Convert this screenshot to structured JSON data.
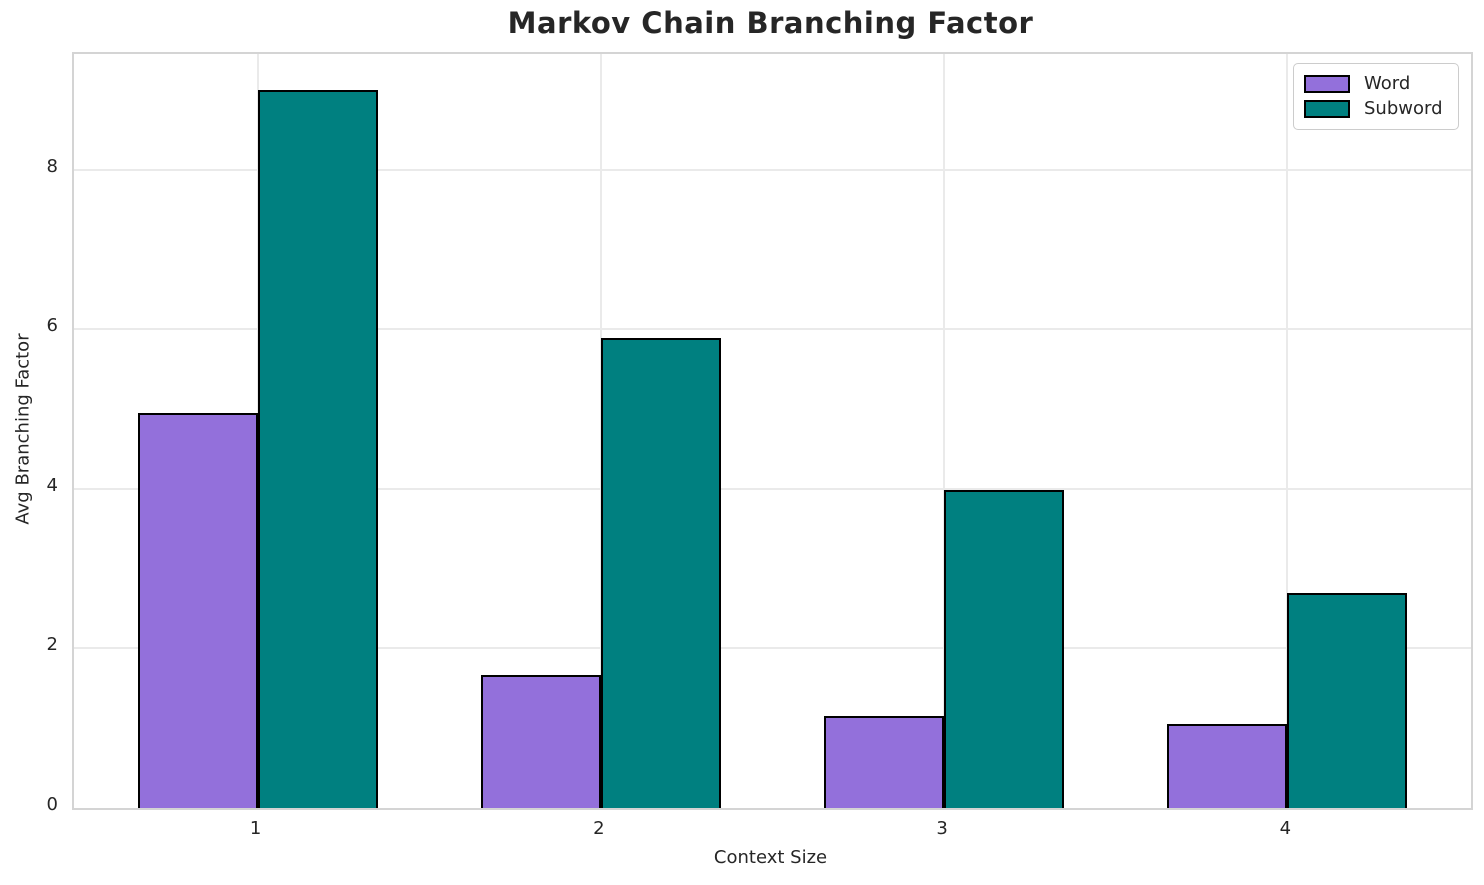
{
  "chart_data": {
    "type": "bar",
    "title": "Markov Chain Branching Factor",
    "xlabel": "Context Size",
    "ylabel": "Avg Branching Factor",
    "categories": [
      "1",
      "2",
      "3",
      "4"
    ],
    "series": [
      {
        "name": "Word",
        "color": "#9370DB",
        "edge_color": "#000000",
        "values": [
          4.95,
          1.67,
          1.15,
          1.05
        ]
      },
      {
        "name": "Subword",
        "color": "#008080",
        "edge_color": "#000000",
        "values": [
          9.0,
          5.89,
          3.98,
          2.69
        ]
      }
    ],
    "ylim": [
      0,
      9.45
    ],
    "yticks": [
      0,
      2,
      4,
      6,
      8
    ],
    "grid": true,
    "bar_width_ratio": 0.35,
    "legend_position": "upper-right",
    "colors": {
      "grid": "#eaeaea",
      "spine": "#d4d4d4",
      "text": "#262626",
      "background": "#ffffff"
    }
  }
}
